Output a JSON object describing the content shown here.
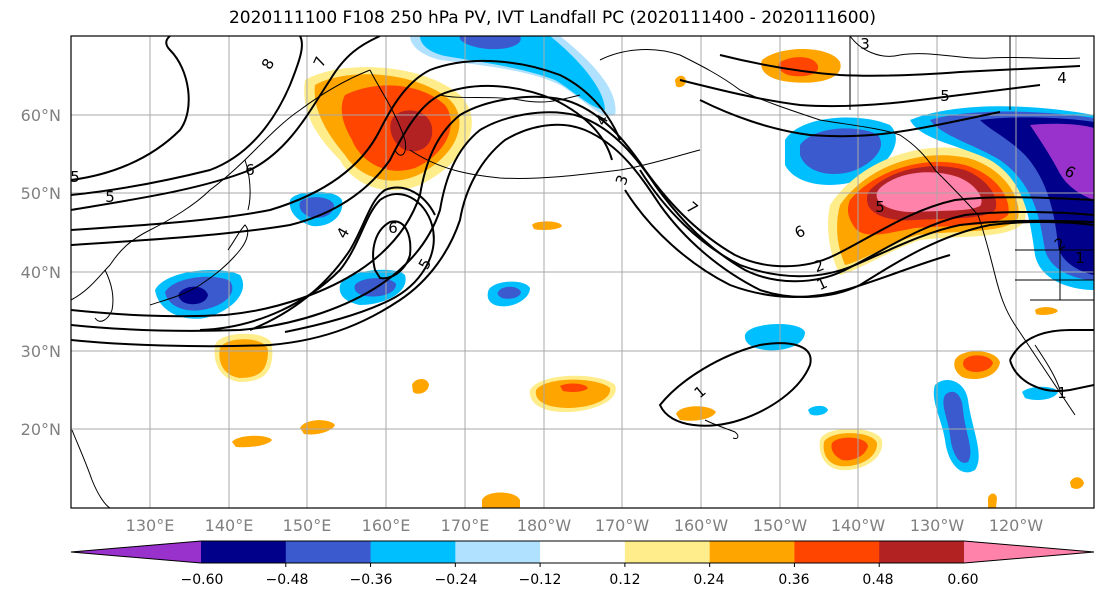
{
  "title": "2020111100 F108 250 hPa PV, IVT Landfall PC (2020111400 - 2020111600)",
  "lat_labels": [
    "60°N",
    "50°N",
    "40°N",
    "30°N",
    "20°N"
  ],
  "lon_labels": [
    "130°E",
    "140°E",
    "150°E",
    "160°E",
    "170°E",
    "180°W",
    "170°W",
    "160°W",
    "150°W",
    "140°W",
    "130°W",
    "120°W"
  ],
  "contour_labels": [
    "8",
    "7",
    "6",
    "5",
    "4",
    "6",
    "5",
    "4",
    "3",
    "2",
    "1",
    "7",
    "6",
    "2",
    "1",
    "3",
    "4",
    "5",
    "5",
    "6",
    "1",
    "1",
    "5"
  ],
  "colorbar": {
    "tick_labels": [
      "−0.60",
      "−0.48",
      "−0.36",
      "−0.24",
      "−0.12",
      "0.12",
      "0.24",
      "0.36",
      "0.48",
      "0.60"
    ],
    "colors": [
      "#9932cc",
      "#00008b",
      "#3a5acd",
      "#00bfff",
      "#b0e2ff",
      "#ffffff",
      "#ffec8b",
      "#ffa500",
      "#ff4500",
      "#b22222",
      "#ff82ab"
    ]
  }
}
